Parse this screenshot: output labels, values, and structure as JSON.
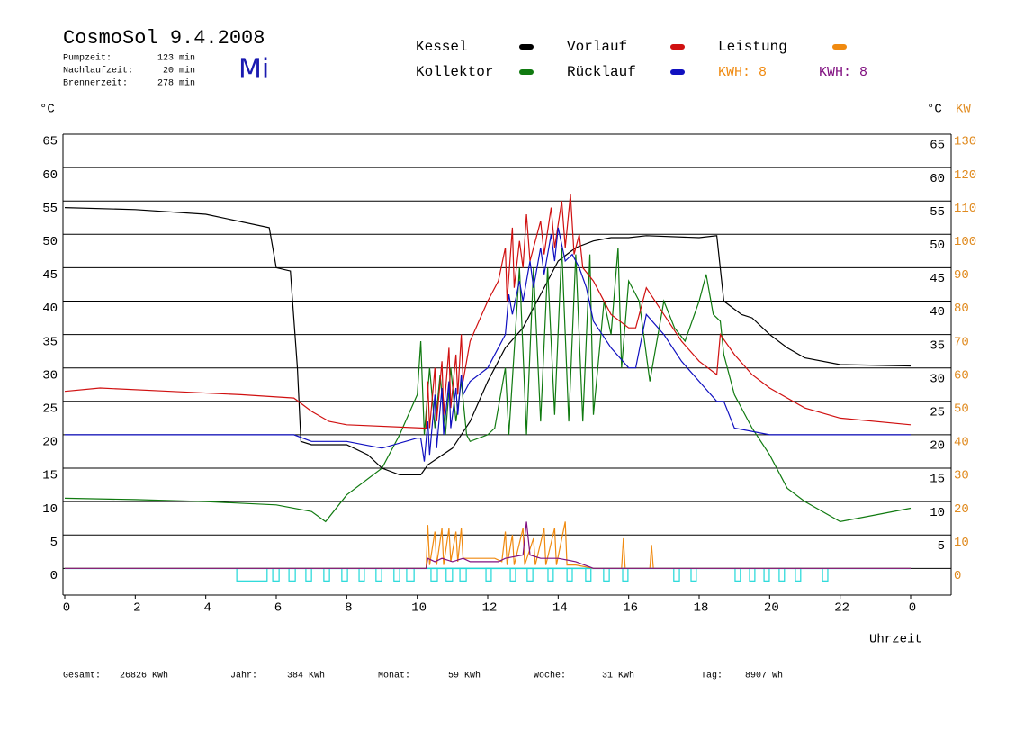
{
  "header": {
    "title": "CosmoSol 9.4.2008",
    "day": "Mi",
    "stats": [
      {
        "label": "Pumpzeit:",
        "value": "123 min"
      },
      {
        "label": "Nachlaufzeit:",
        "value": "20 min"
      },
      {
        "label": "Brennerzeit:",
        "value": "278 min"
      }
    ]
  },
  "chart_data": {
    "type": "line",
    "ylabel": "°C",
    "ylabel_right": "°C",
    "y2label": "KW",
    "xlabel": "Uhrzeit",
    "xlim": [
      0,
      24
    ],
    "xticks": [
      0,
      2,
      4,
      6,
      8,
      10,
      12,
      14,
      16,
      18,
      20,
      22,
      {
        "value": 24,
        "label": "0"
      }
    ],
    "ylim": [
      -4,
      65
    ],
    "yticks": [
      0,
      5,
      10,
      15,
      20,
      25,
      30,
      35,
      40,
      45,
      50,
      55,
      60,
      65
    ],
    "yticks_right": [
      5,
      10,
      15,
      20,
      25,
      30,
      35,
      40,
      45,
      50,
      55,
      60,
      65
    ],
    "y2lim": [
      -8,
      130
    ],
    "y2ticks": [
      0,
      10,
      20,
      30,
      40,
      50,
      60,
      70,
      80,
      90,
      100,
      110,
      120,
      130
    ],
    "y2color": "#e08a1e",
    "grid": true,
    "series": [
      {
        "name": "Kessel",
        "color": "#000000",
        "x": [
          0,
          2,
          4,
          5.8,
          6,
          6.4,
          6.6,
          6.7,
          7,
          8,
          8.6,
          9,
          9.5,
          10.1,
          10.3,
          11,
          11.5,
          12,
          12.5,
          13,
          13.5,
          14,
          14.5,
          15,
          15.5,
          16,
          16.5,
          18,
          18.5,
          18.7,
          19.2,
          19.5,
          20,
          20.5,
          21,
          22,
          24
        ],
        "values": [
          54,
          53.7,
          53,
          51,
          45,
          44.5,
          30,
          19,
          18.5,
          18.5,
          17,
          15,
          14,
          14,
          15.5,
          18,
          22,
          28,
          33,
          36,
          41,
          46,
          48,
          49,
          49.5,
          49.5,
          49.8,
          49.5,
          49.8,
          40,
          38,
          37.5,
          35,
          33,
          31.5,
          30.5,
          30.3
        ]
      },
      {
        "name": "Kollektor",
        "color": "#107a10",
        "x": [
          0,
          2,
          4,
          6,
          7,
          7.4,
          8,
          9,
          9.5,
          10,
          10.1,
          10.2,
          10.35,
          10.5,
          10.65,
          10.8,
          10.95,
          11.1,
          11.25,
          11.4,
          11.5,
          12,
          12.2,
          12.5,
          12.6,
          12.9,
          13.1,
          13.3,
          13.5,
          13.7,
          13.9,
          14.1,
          14.3,
          14.5,
          14.7,
          14.9,
          15,
          15.3,
          15.5,
          15.7,
          15.8,
          16,
          16.3,
          16.6,
          17,
          17.3,
          17.6,
          18,
          18.2,
          18.4,
          18.6,
          18.7,
          19,
          19.5,
          20,
          20.5,
          21,
          22,
          23,
          24
        ],
        "values": [
          10.5,
          10.3,
          10,
          9.5,
          8.5,
          7,
          11,
          15,
          20,
          26,
          34,
          20,
          30,
          21,
          29,
          20,
          30,
          22,
          28,
          20,
          19,
          20,
          21,
          30,
          20,
          45,
          20,
          45,
          22,
          45,
          23,
          48,
          22,
          47,
          22,
          47,
          23,
          40,
          35,
          48,
          30,
          43,
          40,
          28,
          40,
          36,
          34,
          40,
          44,
          38,
          37,
          32,
          26,
          21,
          17,
          12,
          10,
          7,
          8,
          9
        ]
      },
      {
        "name": "Vorlauf",
        "color": "#d01010",
        "x": [
          0,
          1,
          3,
          5,
          6.5,
          7,
          7.5,
          8,
          10.2,
          10.25,
          10.3,
          10.35,
          10.5,
          10.55,
          10.7,
          10.75,
          10.9,
          10.95,
          11.1,
          11.15,
          11.25,
          11.3,
          11.5,
          12,
          12.3,
          12.5,
          12.55,
          12.7,
          12.75,
          12.9,
          13,
          13.1,
          13.2,
          13.5,
          13.6,
          13.8,
          13.9,
          14.1,
          14.2,
          14.35,
          14.45,
          14.6,
          14.7,
          15,
          15.5,
          16,
          16.2,
          16.5,
          17,
          17.5,
          18,
          18.5,
          18.6,
          19,
          19.5,
          20,
          21,
          22,
          24
        ],
        "values": [
          26.5,
          27,
          26.5,
          26,
          25.5,
          23.5,
          22,
          21.5,
          21,
          21,
          28,
          21,
          30,
          22,
          31,
          23,
          33,
          24,
          32,
          26,
          35,
          28,
          34,
          40,
          43,
          48,
          40,
          51,
          42,
          49,
          45,
          53,
          46,
          52,
          47,
          54,
          48,
          55,
          48,
          56,
          47,
          50,
          45,
          43,
          38,
          36,
          36,
          42,
          38,
          34,
          31,
          29,
          35,
          32,
          29,
          27,
          24,
          22.5,
          21.5
        ]
      },
      {
        "name": "Rücklauf",
        "color": "#1010c0",
        "x": [
          0,
          6.5,
          7,
          8,
          9,
          10,
          10.1,
          10.2,
          10.3,
          10.35,
          10.5,
          10.55,
          10.7,
          10.75,
          10.9,
          10.95,
          11.1,
          11.15,
          11.25,
          11.3,
          11.5,
          12,
          12.5,
          12.6,
          12.7,
          12.9,
          13,
          13.2,
          13.3,
          13.5,
          13.6,
          13.8,
          13.9,
          14,
          14.2,
          14.4,
          14.6,
          14.8,
          15,
          15.5,
          16,
          16.2,
          16.5,
          17,
          17.5,
          18,
          18.5,
          18.7,
          19,
          20,
          24
        ],
        "values": [
          20,
          20,
          19,
          19,
          18,
          19.5,
          19.5,
          16,
          22,
          17,
          26,
          18,
          27,
          20,
          28,
          21,
          27,
          23,
          29,
          26,
          28,
          30,
          35,
          41,
          38,
          43,
          40,
          46,
          42,
          48,
          44,
          50,
          46,
          51,
          46,
          47,
          45,
          42,
          37,
          33,
          30,
          30,
          38,
          35,
          31,
          28,
          25,
          25,
          21,
          20,
          20
        ]
      },
      {
        "name": "Leistung",
        "color": "#f08a10",
        "axis": "y2",
        "x": [
          0,
          10.25,
          10.3,
          10.35,
          10.5,
          10.55,
          10.7,
          10.75,
          10.9,
          10.95,
          11.1,
          11.15,
          11.25,
          11.3,
          11.5,
          12.2,
          12.4,
          12.5,
          12.55,
          12.7,
          12.75,
          13,
          13.05,
          13.3,
          13.35,
          13.6,
          13.65,
          13.9,
          13.95,
          14.2,
          14.25,
          14.5,
          15,
          15.8,
          15.85,
          15.9,
          16.6,
          16.65,
          16.7,
          24
        ],
        "values": [
          0,
          0,
          13,
          1,
          11,
          1,
          12,
          1,
          12,
          2,
          11,
          2,
          12,
          3,
          3,
          3,
          2,
          11,
          1,
          10,
          1,
          12,
          1,
          9,
          1,
          12,
          1,
          12,
          1,
          14,
          1,
          1,
          0,
          0,
          9,
          0,
          0,
          7,
          0,
          0
        ]
      },
      {
        "color": "#801080",
        "axis": "y2",
        "x": [
          0,
          10.25,
          10.3,
          10.5,
          10.7,
          11,
          11.3,
          11.5,
          12.3,
          12.5,
          13,
          13.1,
          13.2,
          13.5,
          14,
          14.5,
          15,
          24
        ],
        "values": [
          0,
          0,
          3,
          2,
          3,
          2,
          3,
          2,
          2,
          3,
          4,
          14,
          4,
          3,
          3,
          2,
          0,
          0
        ]
      }
    ],
    "legend_extra": [
      {
        "label": "KWH: 8",
        "color": "#f08a10"
      },
      {
        "label": "KWH: 8",
        "color": "#801080"
      }
    ],
    "pump": {
      "color": "#20d8d8",
      "intervals": [
        [
          4.88,
          5.74
        ],
        [
          5.9,
          6.08
        ],
        [
          6.36,
          6.54
        ],
        [
          6.84,
          7.0
        ],
        [
          7.35,
          7.51
        ],
        [
          7.86,
          8.02
        ],
        [
          8.35,
          8.5
        ],
        [
          8.83,
          8.99
        ],
        [
          9.34,
          9.5
        ],
        [
          9.7,
          9.91
        ],
        [
          10.39,
          10.57
        ],
        [
          10.82,
          11.0
        ],
        [
          11.21,
          11.39
        ],
        [
          11.95,
          12.1
        ],
        [
          12.64,
          12.79
        ],
        [
          13.12,
          13.28
        ],
        [
          13.71,
          13.86
        ],
        [
          14.25,
          14.4
        ],
        [
          14.78,
          14.93
        ],
        [
          15.29,
          15.45
        ],
        [
          15.83,
          15.98
        ],
        [
          17.28,
          17.44
        ],
        [
          17.77,
          17.92
        ],
        [
          19.02,
          19.17
        ],
        [
          19.43,
          19.58
        ],
        [
          19.84,
          19.99
        ],
        [
          20.27,
          20.42
        ],
        [
          20.73,
          20.88
        ],
        [
          21.5,
          21.65
        ]
      ]
    }
  },
  "footer": [
    {
      "label": "Gesamt:",
      "value": "26826 KWh"
    },
    {
      "label": "Jahr:",
      "value": "384 KWh"
    },
    {
      "label": "Monat:",
      "value": "59 KWh"
    },
    {
      "label": "Woche:",
      "value": "31 KWh"
    },
    {
      "label": "Tag:",
      "value": "8907 Wh"
    }
  ]
}
